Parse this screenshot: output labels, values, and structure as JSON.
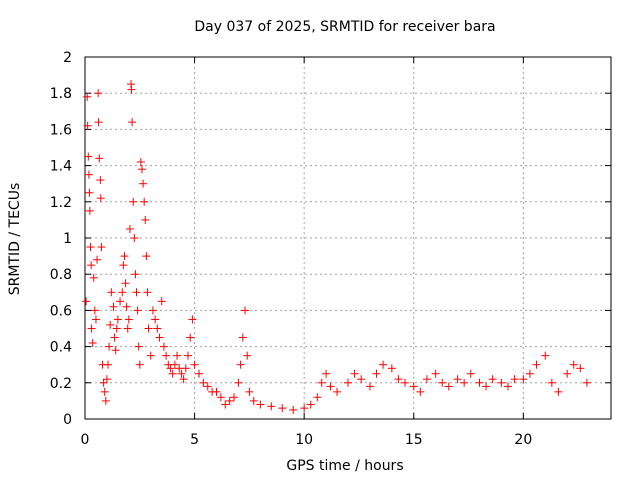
{
  "chart_data": {
    "type": "scatter",
    "title": "Day 037 of 2025, SRMTID for receiver bara",
    "xlabel": "GPS time / hours",
    "ylabel": "SRMTID / TECUs",
    "xlim": [
      0,
      24
    ],
    "ylim": [
      0,
      2
    ],
    "xticks": [
      0,
      5,
      10,
      15,
      20
    ],
    "xtick_labels": [
      "0",
      "5",
      "10",
      "15",
      "20"
    ],
    "yticks": [
      0,
      0.2,
      0.4,
      0.6,
      0.8,
      1,
      1.2,
      1.4,
      1.6,
      1.8,
      2
    ],
    "ytick_labels": [
      "0",
      "0.2",
      "0.4",
      "0.6",
      "0.8",
      "1",
      "1.2",
      "1.4",
      "1.6",
      "1.8",
      "2"
    ],
    "grid": true,
    "marker": "+",
    "color": "#ff0000",
    "series": [
      {
        "name": "SRMTID",
        "points": [
          [
            0.05,
            0.65
          ],
          [
            0.1,
            1.78
          ],
          [
            0.12,
            1.62
          ],
          [
            0.15,
            1.45
          ],
          [
            0.18,
            1.35
          ],
          [
            0.2,
            1.25
          ],
          [
            0.22,
            1.15
          ],
          [
            0.25,
            0.95
          ],
          [
            0.28,
            0.85
          ],
          [
            0.3,
            0.5
          ],
          [
            0.35,
            0.42
          ],
          [
            0.4,
            0.78
          ],
          [
            0.45,
            0.6
          ],
          [
            0.5,
            0.55
          ],
          [
            0.55,
            0.88
          ],
          [
            0.6,
            1.8
          ],
          [
            0.62,
            1.64
          ],
          [
            0.65,
            1.44
          ],
          [
            0.7,
            1.32
          ],
          [
            0.72,
            1.22
          ],
          [
            0.75,
            0.95
          ],
          [
            0.8,
            0.3
          ],
          [
            0.85,
            0.2
          ],
          [
            0.9,
            0.15
          ],
          [
            0.95,
            0.1
          ],
          [
            1.0,
            0.22
          ],
          [
            1.05,
            0.3
          ],
          [
            1.1,
            0.4
          ],
          [
            1.15,
            0.52
          ],
          [
            1.2,
            0.7
          ],
          [
            1.3,
            0.62
          ],
          [
            1.35,
            0.45
          ],
          [
            1.4,
            0.38
          ],
          [
            1.45,
            0.5
          ],
          [
            1.5,
            0.55
          ],
          [
            1.6,
            0.65
          ],
          [
            1.7,
            0.7
          ],
          [
            1.75,
            0.85
          ],
          [
            1.8,
            0.9
          ],
          [
            1.85,
            0.75
          ],
          [
            1.9,
            0.62
          ],
          [
            1.95,
            0.5
          ],
          [
            2.0,
            0.55
          ],
          [
            2.05,
            1.05
          ],
          [
            2.1,
            1.85
          ],
          [
            2.12,
            1.82
          ],
          [
            2.15,
            1.64
          ],
          [
            2.2,
            1.2
          ],
          [
            2.25,
            1.0
          ],
          [
            2.3,
            0.8
          ],
          [
            2.35,
            0.7
          ],
          [
            2.4,
            0.6
          ],
          [
            2.45,
            0.4
          ],
          [
            2.5,
            0.3
          ],
          [
            2.55,
            1.42
          ],
          [
            2.6,
            1.38
          ],
          [
            2.65,
            1.3
          ],
          [
            2.7,
            1.2
          ],
          [
            2.75,
            1.1
          ],
          [
            2.8,
            0.9
          ],
          [
            2.85,
            0.7
          ],
          [
            2.9,
            0.5
          ],
          [
            3.0,
            0.35
          ],
          [
            3.1,
            0.6
          ],
          [
            3.2,
            0.55
          ],
          [
            3.3,
            0.5
          ],
          [
            3.4,
            0.45
          ],
          [
            3.5,
            0.65
          ],
          [
            3.6,
            0.4
          ],
          [
            3.7,
            0.35
          ],
          [
            3.8,
            0.3
          ],
          [
            3.9,
            0.28
          ],
          [
            4.0,
            0.25
          ],
          [
            4.1,
            0.3
          ],
          [
            4.2,
            0.35
          ],
          [
            4.3,
            0.28
          ],
          [
            4.4,
            0.25
          ],
          [
            4.5,
            0.22
          ],
          [
            4.6,
            0.28
          ],
          [
            4.7,
            0.35
          ],
          [
            4.8,
            0.45
          ],
          [
            4.9,
            0.55
          ],
          [
            5.0,
            0.3
          ],
          [
            5.2,
            0.25
          ],
          [
            5.4,
            0.2
          ],
          [
            5.6,
            0.18
          ],
          [
            5.8,
            0.15
          ],
          [
            6.0,
            0.15
          ],
          [
            6.2,
            0.12
          ],
          [
            6.4,
            0.08
          ],
          [
            6.6,
            0.1
          ],
          [
            6.8,
            0.12
          ],
          [
            7.0,
            0.2
          ],
          [
            7.1,
            0.3
          ],
          [
            7.2,
            0.45
          ],
          [
            7.3,
            0.6
          ],
          [
            7.4,
            0.35
          ],
          [
            7.5,
            0.15
          ],
          [
            7.7,
            0.1
          ],
          [
            8.0,
            0.08
          ],
          [
            8.5,
            0.07
          ],
          [
            9.0,
            0.06
          ],
          [
            9.5,
            0.05
          ],
          [
            10.0,
            0.06
          ],
          [
            10.3,
            0.08
          ],
          [
            10.6,
            0.12
          ],
          [
            10.8,
            0.2
          ],
          [
            11.0,
            0.25
          ],
          [
            11.2,
            0.18
          ],
          [
            11.5,
            0.15
          ],
          [
            12.0,
            0.2
          ],
          [
            12.3,
            0.25
          ],
          [
            12.6,
            0.22
          ],
          [
            13.0,
            0.18
          ],
          [
            13.3,
            0.25
          ],
          [
            13.6,
            0.3
          ],
          [
            14.0,
            0.28
          ],
          [
            14.3,
            0.22
          ],
          [
            14.6,
            0.2
          ],
          [
            15.0,
            0.18
          ],
          [
            15.3,
            0.15
          ],
          [
            15.6,
            0.22
          ],
          [
            16.0,
            0.25
          ],
          [
            16.3,
            0.2
          ],
          [
            16.6,
            0.18
          ],
          [
            17.0,
            0.22
          ],
          [
            17.3,
            0.2
          ],
          [
            17.6,
            0.25
          ],
          [
            18.0,
            0.2
          ],
          [
            18.3,
            0.18
          ],
          [
            18.6,
            0.22
          ],
          [
            19.0,
            0.2
          ],
          [
            19.3,
            0.18
          ],
          [
            19.6,
            0.22
          ],
          [
            20.0,
            0.22
          ],
          [
            20.3,
            0.25
          ],
          [
            20.6,
            0.3
          ],
          [
            21.0,
            0.35
          ],
          [
            21.3,
            0.2
          ],
          [
            21.6,
            0.15
          ],
          [
            22.0,
            0.25
          ],
          [
            22.3,
            0.3
          ],
          [
            22.6,
            0.28
          ],
          [
            22.9,
            0.2
          ]
        ]
      }
    ]
  }
}
